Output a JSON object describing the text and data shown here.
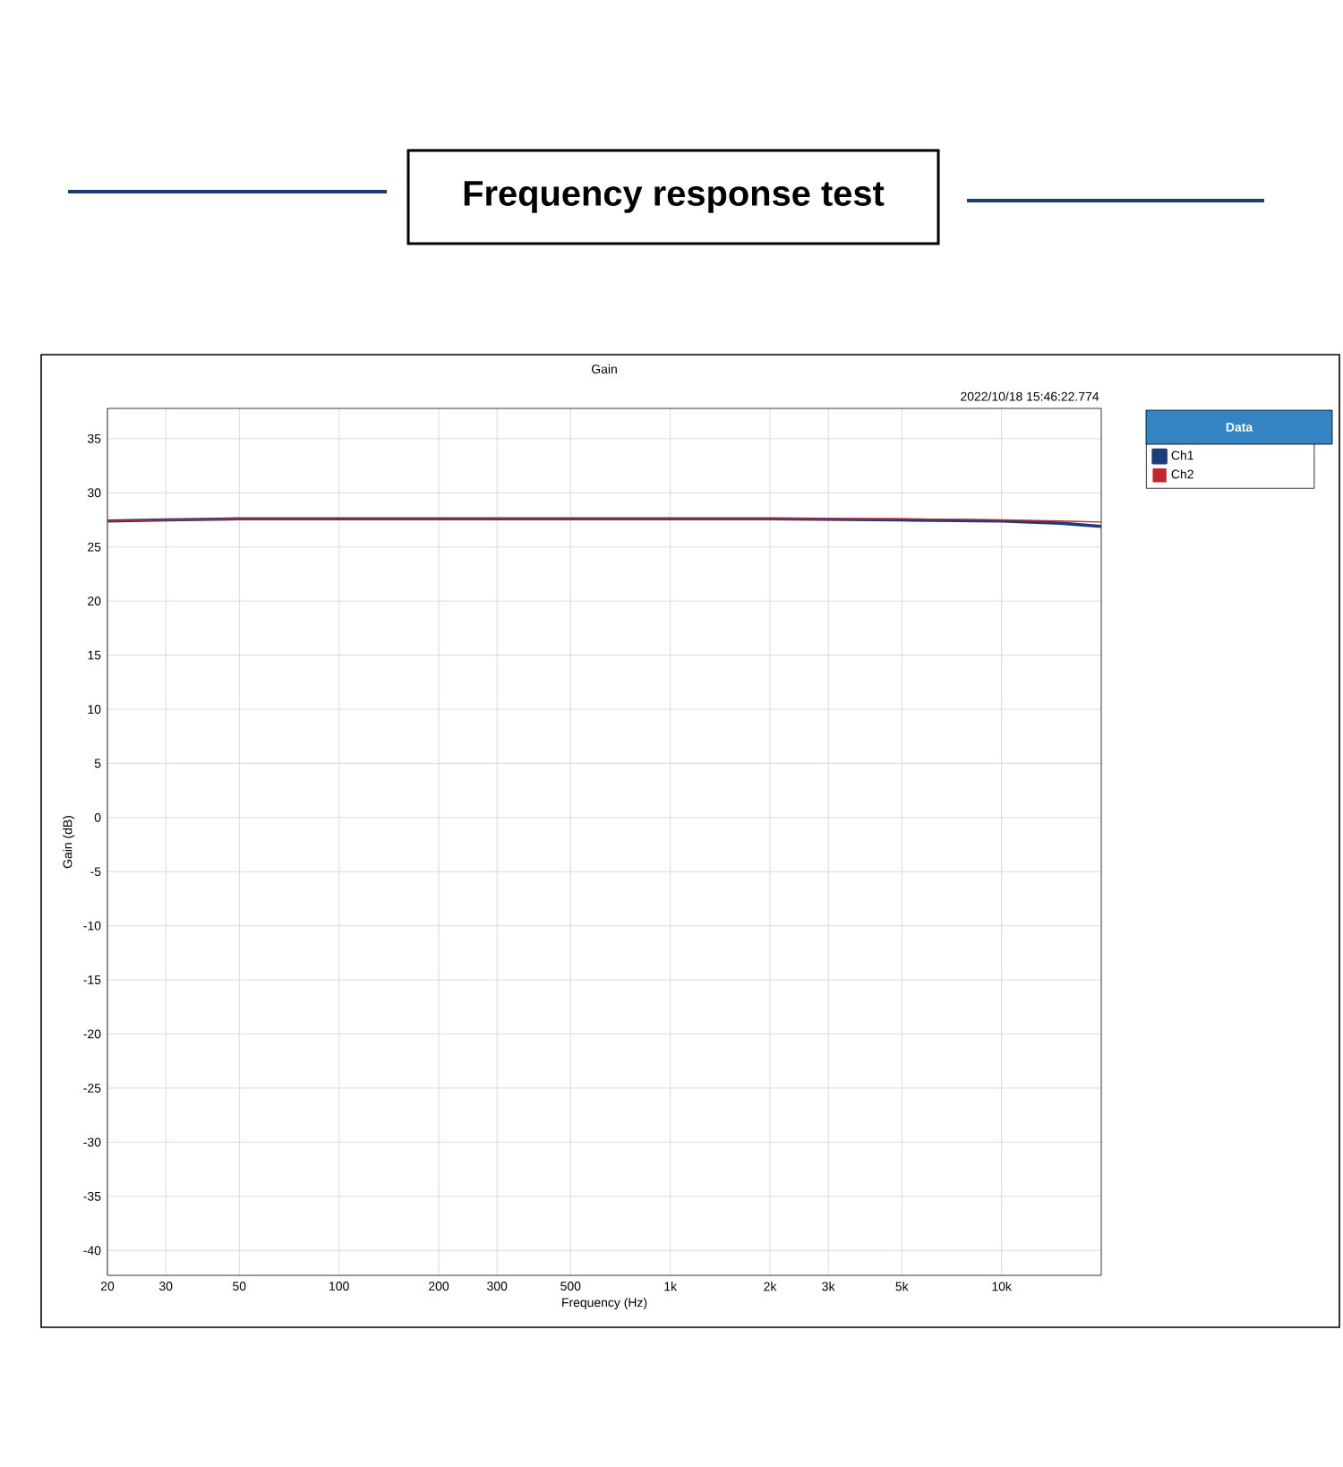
{
  "chart_data": {
    "type": "line",
    "title": "Frequency response test",
    "subtitle": "Gain",
    "annotations": [
      "2022/10/18 15:46:22.774"
    ],
    "xlabel": "Frequency (Hz)",
    "ylabel": "Gain (dB)",
    "legend_title": "Data",
    "log": "x",
    "grid": true,
    "legend": "right",
    "marker": "none",
    "line_style": "solid",
    "xlim": [
      20,
      20000
    ],
    "ylim": [
      -42.3,
      37.8
    ],
    "xticks": [
      20,
      30,
      50,
      100,
      200,
      300,
      500,
      {
        "value": 1000,
        "label": "1k"
      },
      {
        "value": 2000,
        "label": "2k"
      },
      {
        "value": 3000,
        "label": "3k"
      },
      {
        "value": 5000,
        "label": "5k"
      },
      {
        "value": 10000,
        "label": "10k"
      }
    ],
    "yticks": [
      -40,
      -35,
      -30,
      -25,
      -20,
      -15,
      -10,
      -5,
      0,
      5,
      10,
      15,
      20,
      25,
      30,
      35
    ],
    "x": [
      20,
      30,
      50,
      100,
      200,
      500,
      1000,
      2000,
      5000,
      10000,
      15000,
      20000
    ],
    "series": [
      {
        "name": "Ch1",
        "color": "#1f3c78",
        "values": [
          27.4,
          27.5,
          27.6,
          27.6,
          27.6,
          27.6,
          27.6,
          27.6,
          27.5,
          27.4,
          27.2,
          26.9
        ]
      },
      {
        "name": "Ch2",
        "color": "#c0282b",
        "values": [
          27.4,
          27.5,
          27.6,
          27.6,
          27.6,
          27.6,
          27.6,
          27.6,
          27.6,
          27.5,
          27.4,
          27.3
        ]
      }
    ]
  }
}
